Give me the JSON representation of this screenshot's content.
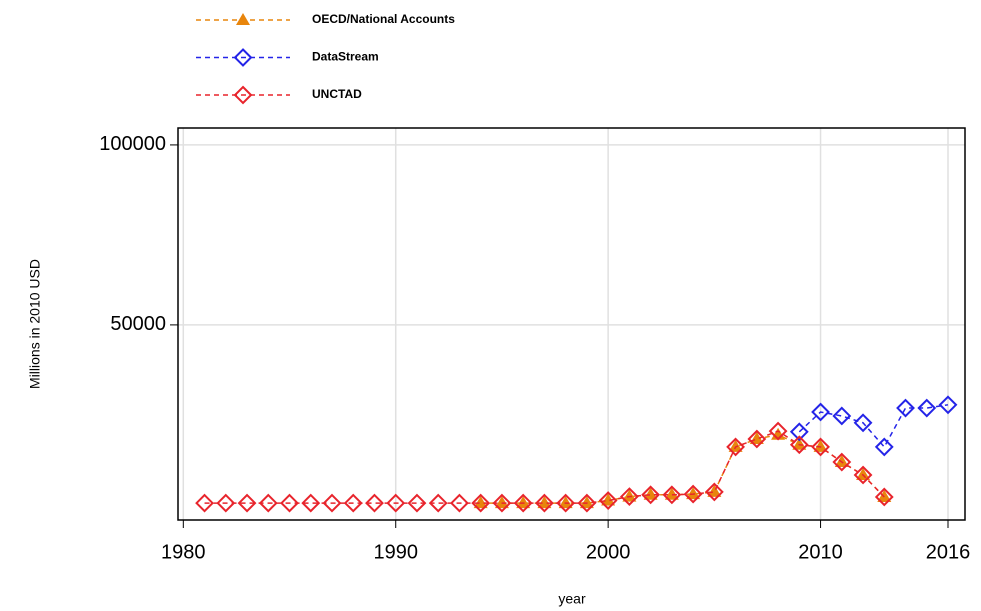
{
  "chart_data": {
    "type": "line",
    "xlabel": "year",
    "ylabel": "Millions in 2010 USD",
    "x": [
      1981,
      1982,
      1983,
      1984,
      1985,
      1986,
      1987,
      1988,
      1989,
      1990,
      1991,
      1992,
      1993,
      1994,
      1995,
      1996,
      1997,
      1998,
      1999,
      2000,
      2001,
      2002,
      2003,
      2004,
      2005,
      2006,
      2007,
      2008,
      2009,
      2010,
      2011,
      2012,
      2013,
      2014,
      2015,
      2016
    ],
    "series": [
      {
        "name": "OECD/National Accounts",
        "color": "#e8850c",
        "marker": "triangle",
        "values": [
          null,
          null,
          null,
          null,
          null,
          null,
          null,
          null,
          null,
          null,
          null,
          null,
          null,
          500,
          500,
          500,
          500,
          500,
          500,
          1200,
          2300,
          2800,
          2800,
          3000,
          3600,
          16100,
          18300,
          19500,
          16700,
          16100,
          11900,
          8300,
          2200,
          null,
          null,
          null
        ]
      },
      {
        "name": "DataStream",
        "color": "#2424e8",
        "marker": "diamond",
        "values": [
          null,
          null,
          null,
          null,
          null,
          null,
          null,
          null,
          null,
          null,
          null,
          null,
          null,
          null,
          null,
          null,
          null,
          null,
          null,
          null,
          null,
          null,
          null,
          null,
          null,
          null,
          null,
          null,
          20300,
          25800,
          24700,
          22800,
          16100,
          26900,
          26900,
          27800
        ]
      },
      {
        "name": "UNCTAD",
        "color": "#e8242c",
        "marker": "diamond",
        "values": [
          500,
          500,
          500,
          500,
          500,
          500,
          500,
          500,
          500,
          500,
          500,
          500,
          500,
          500,
          500,
          500,
          500,
          500,
          500,
          1200,
          2300,
          2800,
          2800,
          3000,
          3600,
          16100,
          18300,
          20500,
          16700,
          16100,
          11900,
          8300,
          2200,
          null,
          null,
          null
        ]
      }
    ],
    "xlim": [
      1979.75,
      2016.8
    ],
    "xticks": [
      1980,
      1990,
      2000,
      2010,
      2016
    ],
    "ylim": [
      -4200,
      104700
    ],
    "yticks": [
      50000,
      100000
    ],
    "grid": true
  }
}
